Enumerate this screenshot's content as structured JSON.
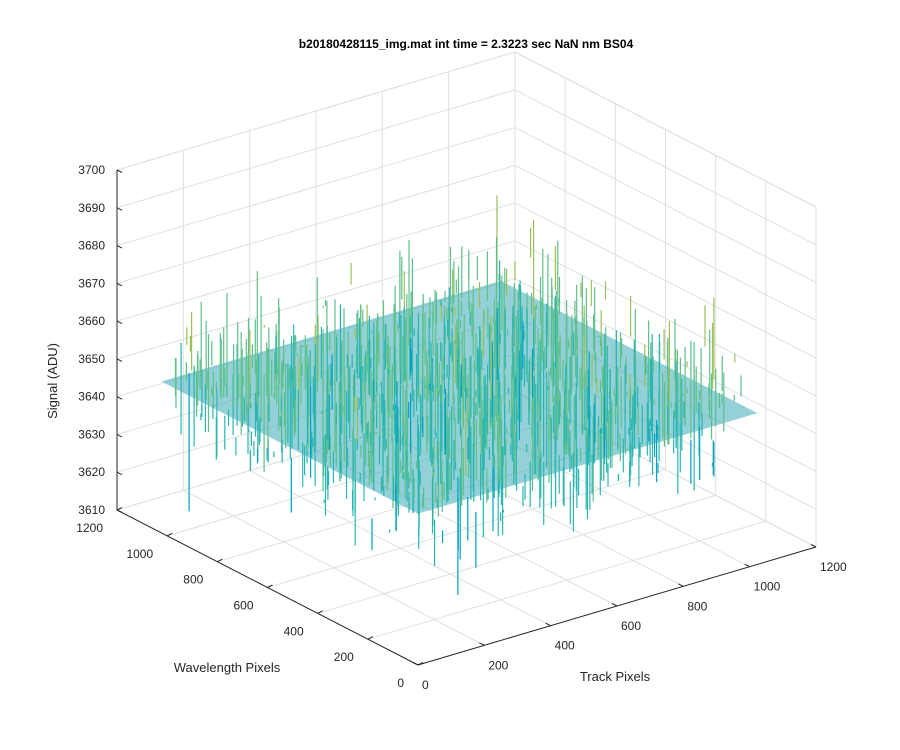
{
  "chart_data": {
    "type": "surface",
    "title": "b20180428115_img.mat int time = 2.3223 sec  NaN nm BS04",
    "xlabel": "Track Pixels",
    "ylabel": "Wavelength Pixels",
    "zlabel": "Signal (ADU)",
    "xlim": [
      0,
      1200
    ],
    "ylim": [
      0,
      1200
    ],
    "zlim": [
      3610,
      3700
    ],
    "xticks": [
      "0",
      "200",
      "400",
      "600",
      "800",
      "1000",
      "1200"
    ],
    "yticks": [
      "0",
      "200",
      "400",
      "600",
      "800",
      "1000",
      "1200"
    ],
    "zticks": [
      "3610",
      "3620",
      "3630",
      "3640",
      "3650",
      "3660",
      "3670",
      "3680",
      "3690",
      "3700"
    ],
    "x_extent": [
      1,
      1024
    ],
    "y_extent": [
      1,
      1024
    ],
    "signal_mean": 3650,
    "signal_noise_range": [
      3615,
      3695
    ],
    "grid": true,
    "colormap": [
      "#0072bd",
      "#00a0c8",
      "#2ab6b0",
      "#5fc08c",
      "#9cbf5a",
      "#d9b43a",
      "#f2c94a"
    ]
  }
}
